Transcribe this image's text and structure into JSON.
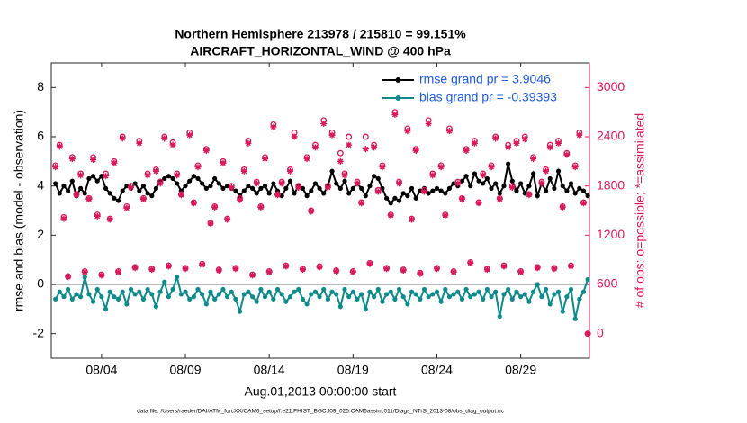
{
  "chart_data": {
    "type": "line",
    "title": "Northern Hemisphere 213978 / 215810 = 99.151%",
    "subtitle": "AIRCRAFT_HORIZONTAL_WIND @ 400 hPa",
    "xlabel": "Aug.01,2013 00:00:00 start",
    "ylabel": "rmse and bias (model - observation)",
    "y2label": "# of obs: o=possible; *=assimilated",
    "footnote": "data file: /Users/raeder/DAI/ATM_forcXX/CAM6_setup/f.e21.FHIST_BGC.f09_025.CAM6assim.011/Diags_NTrS_2013-08/obs_diag_output.nc",
    "xlim": [
      0,
      32.1
    ],
    "xticks": [
      {
        "value": 3,
        "label": "08/04"
      },
      {
        "value": 8,
        "label": "08/09"
      },
      {
        "value": 13,
        "label": "08/14"
      },
      {
        "value": 18,
        "label": "08/19"
      },
      {
        "value": 23,
        "label": "08/24"
      },
      {
        "value": 28,
        "label": "08/29"
      }
    ],
    "ylim": [
      -3,
      9
    ],
    "yticks": [
      -2,
      0,
      2,
      4,
      6,
      8
    ],
    "y2lim": [
      -300,
      3300
    ],
    "y2ticks": [
      0,
      600,
      1200,
      1800,
      2400,
      3000
    ],
    "y2color": "#d6195b",
    "zero_line": true,
    "grid": false,
    "legend": "upper right",
    "x": [
      0.25,
      0.5,
      0.75,
      1,
      1.25,
      1.5,
      1.75,
      2,
      2.25,
      2.5,
      2.75,
      3,
      3.25,
      3.5,
      3.75,
      4,
      4.25,
      4.5,
      4.75,
      5,
      5.25,
      5.5,
      5.75,
      6,
      6.25,
      6.5,
      6.75,
      7,
      7.25,
      7.5,
      7.75,
      8,
      8.25,
      8.5,
      8.75,
      9,
      9.25,
      9.5,
      9.75,
      10,
      10.25,
      10.5,
      10.75,
      11,
      11.25,
      11.5,
      11.75,
      12,
      12.25,
      12.5,
      12.75,
      13,
      13.25,
      13.5,
      13.75,
      14,
      14.25,
      14.5,
      14.75,
      15,
      15.25,
      15.5,
      15.75,
      16,
      16.25,
      16.5,
      16.75,
      17,
      17.25,
      17.5,
      17.75,
      18,
      18.25,
      18.5,
      18.75,
      19,
      19.25,
      19.5,
      19.75,
      20,
      20.25,
      20.5,
      20.75,
      21,
      21.25,
      21.5,
      21.75,
      22,
      22.25,
      22.5,
      22.75,
      23,
      23.25,
      23.5,
      23.75,
      24,
      24.25,
      24.5,
      24.75,
      25,
      25.25,
      25.5,
      25.75,
      26,
      26.25,
      26.5,
      26.75,
      27,
      27.25,
      27.5,
      27.75,
      28,
      28.25,
      28.5,
      28.75,
      29,
      29.25,
      29.5,
      29.75,
      30,
      30.25,
      30.5,
      30.75,
      31,
      31.25,
      31.5,
      31.75,
      32
    ],
    "series": [
      {
        "name": "rmse grand pr = 3.9046",
        "color": "#000000",
        "type": "line",
        "axis": "y",
        "values": [
          4.1,
          3.7,
          4.0,
          3.8,
          4.2,
          3.6,
          3.9,
          3.7,
          4.3,
          4.4,
          4.2,
          4.4,
          3.9,
          3.7,
          3.5,
          3.4,
          3.8,
          4.0,
          3.9,
          4.1,
          3.8,
          4.0,
          3.7,
          3.6,
          3.9,
          4.2,
          4.3,
          4.4,
          4.3,
          4.1,
          3.8,
          4.0,
          4.2,
          4.4,
          4.3,
          4.1,
          3.9,
          4.0,
          4.3,
          4.1,
          3.9,
          4.0,
          3.9,
          3.8,
          3.6,
          3.8,
          4.0,
          3.9,
          3.7,
          3.9,
          4.0,
          3.7,
          4.1,
          3.8,
          3.6,
          3.9,
          4.2,
          3.7,
          4.0,
          3.9,
          3.6,
          3.8,
          4.1,
          3.9,
          3.7,
          4.0,
          4.6,
          4.1,
          3.9,
          4.2,
          3.7,
          3.9,
          4.1,
          3.9,
          3.6,
          4.0,
          4.4,
          4.3,
          3.9,
          3.5,
          3.3,
          3.5,
          3.4,
          3.7,
          3.6,
          3.9,
          3.5,
          3.8,
          3.9,
          3.7,
          3.8,
          3.9,
          3.8,
          3.7,
          3.9,
          4.1,
          4.0,
          4.2,
          4.4,
          4.0,
          4.5,
          4.2,
          4.1,
          4.3,
          3.9,
          4.1,
          3.7,
          4.0,
          4.9,
          4.2,
          3.8,
          4.1,
          3.7,
          4.0,
          4.5,
          3.6,
          4.1,
          3.8,
          4.3,
          3.9,
          4.6,
          4.0,
          3.8,
          4.1,
          3.7,
          3.9,
          3.8,
          3.6
        ]
      },
      {
        "name": "bias grand pr = -0.39393",
        "color": "#0e8a8a",
        "type": "line",
        "axis": "y",
        "values": [
          -0.6,
          -0.3,
          -0.5,
          -0.2,
          -0.6,
          -0.4,
          -0.5,
          0.3,
          -0.4,
          -0.7,
          -0.2,
          -0.5,
          -1.0,
          -0.3,
          -0.5,
          -0.6,
          -0.3,
          -0.8,
          -0.2,
          -0.4,
          -0.3,
          -0.6,
          -0.2,
          -0.4,
          -0.9,
          -0.3,
          0.1,
          -0.5,
          -0.2,
          0.3,
          -0.4,
          -0.3,
          -0.6,
          -0.5,
          -0.2,
          -0.4,
          -0.8,
          -0.3,
          -0.6,
          -0.4,
          -0.2,
          -0.5,
          -0.3,
          -0.6,
          -1.1,
          -0.4,
          -0.3,
          -0.5,
          -0.7,
          -0.2,
          -0.5,
          -0.3,
          -0.6,
          -0.2,
          -0.4,
          -0.7,
          -0.5,
          -0.3,
          -0.2,
          -0.6,
          -0.8,
          -0.4,
          -0.3,
          -0.5,
          -0.2,
          -0.6,
          -0.3,
          -0.4,
          -0.9,
          -0.2,
          -0.5,
          -0.3,
          -0.6,
          -0.4,
          -1.0,
          -0.3,
          -0.5,
          -0.2,
          -0.7,
          -0.4,
          -0.3,
          -0.6,
          -0.2,
          -0.5,
          -0.8,
          -0.3,
          -0.4,
          -0.6,
          -0.2,
          -0.5,
          -0.4,
          -0.3,
          -0.7,
          -0.2,
          -0.5,
          -0.4,
          -0.3,
          -0.6,
          -0.2,
          -0.5,
          -0.4,
          -0.3,
          -0.6,
          -0.2,
          -0.5,
          -0.3,
          -1.3,
          -0.4,
          -0.2,
          -0.6,
          -0.3,
          -0.5,
          -0.4,
          -0.7,
          -0.3,
          0.0,
          -0.5,
          -0.2,
          -0.8,
          -0.4,
          -0.3,
          -1.1,
          -0.5,
          -0.2,
          -1.4,
          -0.6,
          -0.3,
          0.2
        ]
      },
      {
        "color": "#d6195b",
        "type": "scatter",
        "marker": "o",
        "axis": "y2",
        "values": [
          2050,
          2300,
          1420,
          700,
          2150,
          1700,
          1950,
          760,
          1650,
          2150,
          1450,
          720,
          1950,
          1400,
          2100,
          760,
          2400,
          1550,
          1800,
          810,
          2350,
          1650,
          1950,
          790,
          2000,
          1850,
          2400,
          830,
          2330,
          1950,
          1700,
          800,
          2450,
          1600,
          2050,
          850,
          2250,
          1350,
          1550,
          780,
          2100,
          1400,
          1800,
          800,
          1650,
          2000,
          2350,
          720,
          1850,
          1550,
          2150,
          760,
          2550,
          1700,
          1850,
          830,
          2000,
          2450,
          1800,
          790,
          2150,
          1500,
          2300,
          820,
          2600,
          1800,
          2450,
          770,
          2200,
          1950,
          2400,
          760,
          1850,
          1600,
          2400,
          860,
          2300,
          1750,
          2050,
          800,
          1450,
          2700,
          1850,
          780,
          2500,
          1400,
          2250,
          740,
          1750,
          2600,
          1950,
          800,
          2050,
          1450,
          2500,
          760,
          1850,
          1650,
          2250,
          870,
          2350,
          1600,
          1950,
          790,
          2050,
          2400,
          1650,
          830,
          2300,
          1800,
          2350,
          760,
          2400,
          1700,
          2150,
          810,
          1850,
          2000,
          2300,
          800,
          2350,
          1550,
          2200,
          830,
          2050,
          2450,
          1600,
          0
        ]
      },
      {
        "color": "#d6195b",
        "type": "scatter",
        "marker": "*",
        "axis": "y2",
        "values": [
          2030,
          2280,
          1400,
          690,
          2130,
          1690,
          1930,
          750,
          1640,
          2120,
          1430,
          710,
          1920,
          1390,
          2080,
          750,
          2380,
          1530,
          1780,
          800,
          2320,
          1640,
          1930,
          780,
          1980,
          1830,
          2380,
          820,
          2300,
          1930,
          1690,
          790,
          2420,
          1590,
          2030,
          840,
          2230,
          1340,
          1540,
          770,
          2080,
          1390,
          1780,
          790,
          1630,
          1980,
          2320,
          710,
          1830,
          1540,
          2130,
          750,
          2520,
          1690,
          1830,
          820,
          1980,
          2400,
          1780,
          780,
          2130,
          1490,
          2270,
          810,
          2560,
          1780,
          2420,
          760,
          2100,
          1930,
          2300,
          750,
          1830,
          1590,
          2250,
          850,
          2270,
          1730,
          2030,
          790,
          1440,
          2670,
          1830,
          770,
          2470,
          1390,
          2230,
          730,
          1730,
          2560,
          1930,
          790,
          2030,
          1440,
          2470,
          750,
          1830,
          1640,
          2230,
          860,
          2320,
          1590,
          1930,
          780,
          2030,
          2380,
          1640,
          820,
          2270,
          1780,
          2320,
          750,
          2370,
          1690,
          2130,
          800,
          1830,
          1980,
          2270,
          790,
          2320,
          1540,
          2180,
          820,
          2030,
          2420,
          1590,
          0
        ]
      }
    ]
  }
}
